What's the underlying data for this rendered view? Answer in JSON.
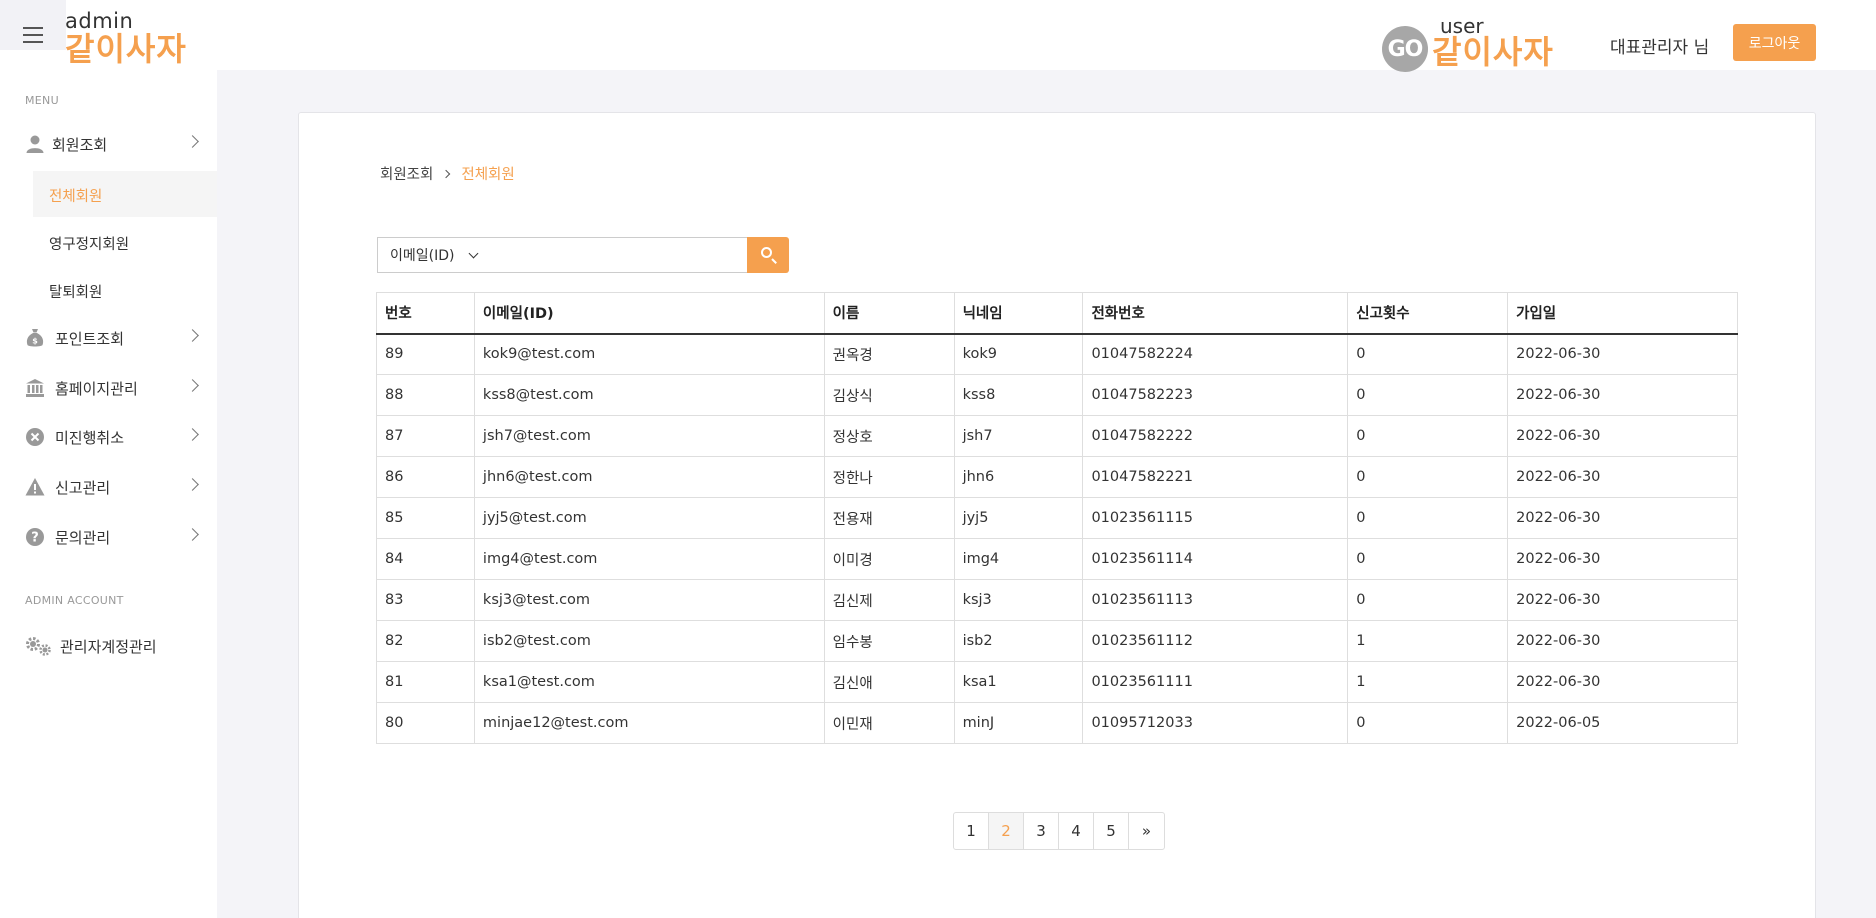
{
  "header": {
    "admin_logo_sub": "admin",
    "admin_logo_main": "같이사자",
    "user_logo_go": "GO",
    "user_logo_sub": "user",
    "user_logo_main": "같이사자",
    "admin_name": "대표관리자 님",
    "logout_label": "로그아웃"
  },
  "sidebar": {
    "menu_label": "MENU",
    "account_label": "ADMIN ACCOUNT",
    "items": [
      {
        "label": "회원조회",
        "icon": "user-icon"
      },
      {
        "label": "포인트조회",
        "icon": "money-bag-icon"
      },
      {
        "label": "홈페이지관리",
        "icon": "bank-icon"
      },
      {
        "label": "미진행취소",
        "icon": "cancel-circle-icon"
      },
      {
        "label": "신고관리",
        "icon": "warning-icon"
      },
      {
        "label": "문의관리",
        "icon": "question-circle-icon"
      }
    ],
    "sub_items": [
      {
        "label": "전체회원",
        "active": true
      },
      {
        "label": "영구정지회원",
        "active": false
      },
      {
        "label": "탈퇴회원",
        "active": false
      }
    ],
    "account_item": {
      "label": "관리자계정관리",
      "icon": "gears-icon"
    }
  },
  "breadcrumb": {
    "parent": "회원조회",
    "current": "전체회원"
  },
  "search": {
    "select_value": "이메일(ID)",
    "input_value": "",
    "placeholder": ""
  },
  "table": {
    "headers": [
      "번호",
      "이메일(ID)",
      "이름",
      "닉네임",
      "전화번호",
      "신고횟수",
      "가입일"
    ],
    "rows": [
      [
        "89",
        "kok9@test.com",
        "권옥경",
        "kok9",
        "01047582224",
        "0",
        "2022-06-30"
      ],
      [
        "88",
        "kss8@test.com",
        "김상식",
        "kss8",
        "01047582223",
        "0",
        "2022-06-30"
      ],
      [
        "87",
        "jsh7@test.com",
        "정상호",
        "jsh7",
        "01047582222",
        "0",
        "2022-06-30"
      ],
      [
        "86",
        "jhn6@test.com",
        "정한나",
        "jhn6",
        "01047582221",
        "0",
        "2022-06-30"
      ],
      [
        "85",
        "jyj5@test.com",
        "전용재",
        "jyj5",
        "01023561115",
        "0",
        "2022-06-30"
      ],
      [
        "84",
        "img4@test.com",
        "이미경",
        "img4",
        "01023561114",
        "0",
        "2022-06-30"
      ],
      [
        "83",
        "ksj3@test.com",
        "김신제",
        "ksj3",
        "01023561113",
        "0",
        "2022-06-30"
      ],
      [
        "82",
        "isb2@test.com",
        "임수봉",
        "isb2",
        "01023561112",
        "1",
        "2022-06-30"
      ],
      [
        "81",
        "ksa1@test.com",
        "김신애",
        "ksa1",
        "01023561111",
        "1",
        "2022-06-30"
      ],
      [
        "80",
        "minjae12@test.com",
        "이민재",
        "minJ",
        "01095712033",
        "0",
        "2022-06-05"
      ]
    ]
  },
  "pagination": {
    "pages": [
      "1",
      "2",
      "3",
      "4",
      "5"
    ],
    "active_page": "2",
    "next_label": "»"
  },
  "colors": {
    "accent": "#f5a04e",
    "background": "#f4f4f8",
    "go_circle": "#a7a7a7"
  }
}
